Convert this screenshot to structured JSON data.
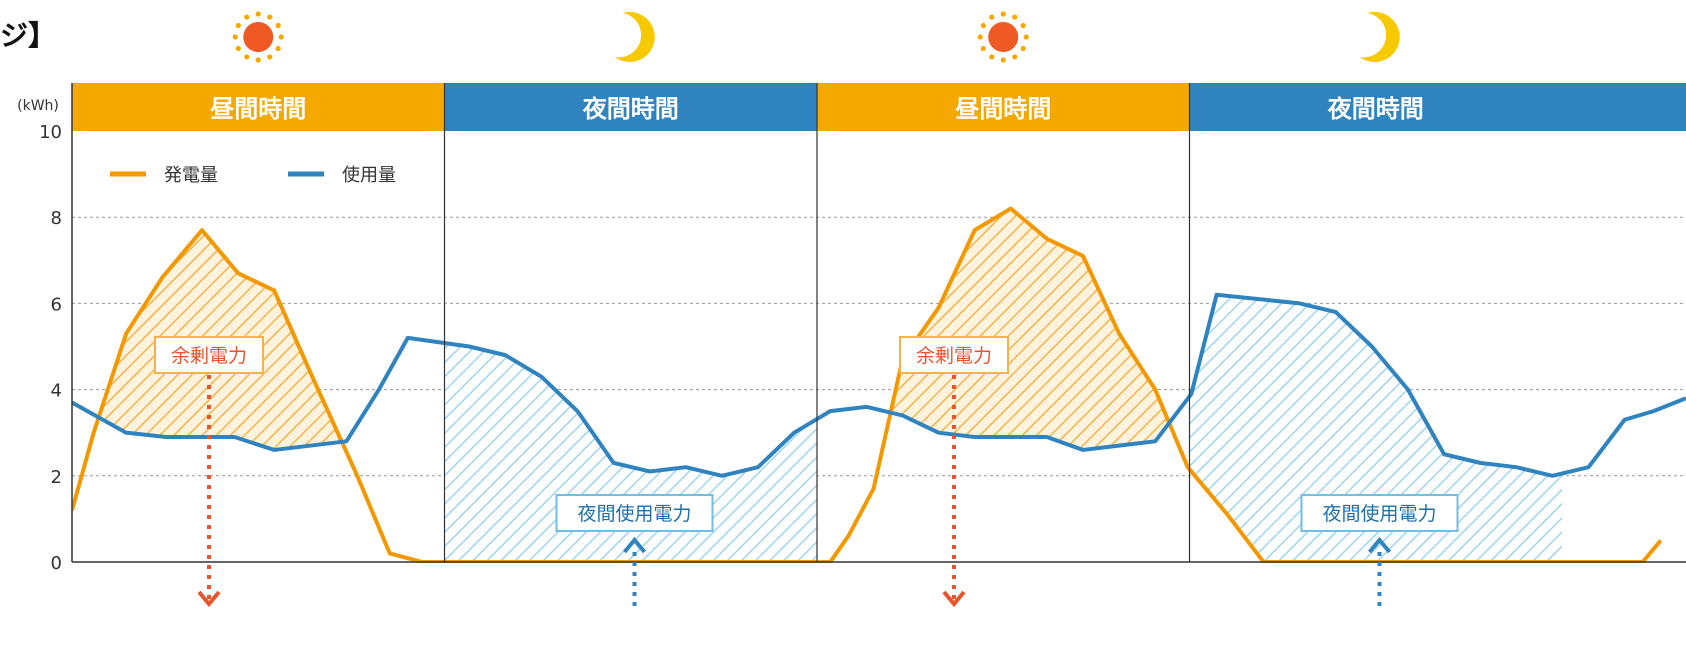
{
  "partial_title": "ジ】",
  "chart_data": {
    "type": "line",
    "title": "",
    "ylabel": "(kWh)",
    "ylim": [
      0,
      10
    ],
    "yticks": [
      0,
      2,
      4,
      6,
      8,
      10
    ],
    "grid": true,
    "legend": {
      "placement": "top-left",
      "entries": [
        {
          "label": "発電量",
          "color": "#f39800"
        },
        {
          "label": "使用量",
          "color": "#2f84c0"
        }
      ]
    },
    "colors": {
      "generation": "#f39800",
      "usage": "#2f84c0",
      "day_band": "#f5a800",
      "night_band": "#2f84c0",
      "surplus_arrow": "#e8552c",
      "night_arrow": "#2f84c0"
    },
    "periods": [
      {
        "label": "昼間時間",
        "kind": "day",
        "icon": "sun-icon"
      },
      {
        "label": "夜間時間",
        "kind": "night",
        "icon": "moon-icon"
      },
      {
        "label": "昼間時間",
        "kind": "day",
        "icon": "sun-icon"
      },
      {
        "label": "夜間時間",
        "kind": "night",
        "icon": "moon-icon"
      }
    ],
    "annotations": [
      {
        "label": "余剰電力",
        "period": 0,
        "kind": "surplus"
      },
      {
        "label": "夜間使用電力",
        "period": 1,
        "kind": "night-use"
      },
      {
        "label": "余剰電力",
        "period": 2,
        "kind": "surplus"
      },
      {
        "label": "夜間使用電力",
        "period": 3,
        "kind": "night-use"
      }
    ],
    "series": [
      {
        "name": "発電量",
        "color": "#f39800",
        "points": [
          [
            0,
            1.2
          ],
          [
            0.6,
            3
          ],
          [
            1.5,
            5.3
          ],
          [
            2.5,
            6.6
          ],
          [
            3.6,
            7.7
          ],
          [
            4.6,
            6.7
          ],
          [
            5.6,
            6.3
          ],
          [
            6.6,
            4.4
          ],
          [
            7.9,
            2.0
          ],
          [
            8.8,
            0.2
          ],
          [
            9.7,
            0
          ],
          [
            11,
            0
          ],
          [
            21,
            0
          ],
          [
            21.5,
            0.6
          ],
          [
            22.2,
            1.7
          ],
          [
            23,
            4.7
          ],
          [
            24,
            5.9
          ],
          [
            25,
            7.7
          ],
          [
            26,
            8.2
          ],
          [
            27,
            7.5
          ],
          [
            28,
            7.1
          ],
          [
            29,
            5.3
          ],
          [
            30,
            4.0
          ],
          [
            30.9,
            2.2
          ],
          [
            32,
            1.1
          ],
          [
            33,
            0
          ],
          [
            34,
            0
          ],
          [
            43.5,
            0
          ],
          [
            44,
            0.5
          ]
        ]
      },
      {
        "name": "使用量",
        "color": "#2f84c0",
        "points": [
          [
            0,
            3.7
          ],
          [
            1.5,
            3.0
          ],
          [
            2.6,
            2.9
          ],
          [
            4.5,
            2.9
          ],
          [
            5.6,
            2.6
          ],
          [
            7.6,
            2.8
          ],
          [
            8.5,
            4.0
          ],
          [
            9.3,
            5.2
          ],
          [
            11,
            5.0
          ],
          [
            12,
            4.8
          ],
          [
            13,
            4.3
          ],
          [
            14,
            3.5
          ],
          [
            15,
            2.3
          ],
          [
            16,
            2.1
          ],
          [
            17,
            2.2
          ],
          [
            18,
            2.0
          ],
          [
            19,
            2.2
          ],
          [
            20,
            3.0
          ],
          [
            21,
            3.5
          ],
          [
            22,
            3.6
          ],
          [
            23,
            3.4
          ],
          [
            24,
            3.0
          ],
          [
            25,
            2.9
          ],
          [
            26,
            2.9
          ],
          [
            27,
            2.9
          ],
          [
            28,
            2.6
          ],
          [
            29,
            2.7
          ],
          [
            30,
            2.8
          ],
          [
            31,
            3.9
          ],
          [
            31.7,
            6.2
          ],
          [
            34,
            6.0
          ],
          [
            35,
            5.8
          ],
          [
            36,
            5.0
          ],
          [
            37,
            4.0
          ],
          [
            38,
            2.5
          ],
          [
            39,
            2.3
          ],
          [
            40,
            2.2
          ],
          [
            41,
            2.0
          ],
          [
            42,
            2.2
          ],
          [
            43,
            3.3
          ],
          [
            43.8,
            3.5
          ],
          [
            44.7,
            3.8
          ]
        ]
      }
    ],
    "xlim": [
      0,
      44.7
    ]
  }
}
